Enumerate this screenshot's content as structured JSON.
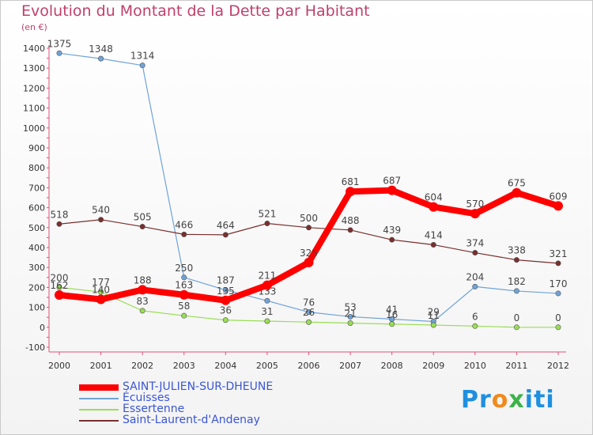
{
  "title": "Evolution du Montant de la Dette par Habitant",
  "subtitle": "(en €)",
  "logo": {
    "p1": "Pr",
    "p2": "o",
    "p3": "x",
    "p4": "iti"
  },
  "chart_data": {
    "type": "line",
    "title": "Evolution du Montant de la Dette par Habitant",
    "subtitle": "(en €)",
    "x": [
      "2000",
      "2001",
      "2002",
      "2003",
      "2004",
      "2005",
      "2006",
      "2007",
      "2008",
      "2009",
      "2010",
      "2011",
      "2012"
    ],
    "ylim": [
      -100,
      1400
    ],
    "yticks": [
      -100,
      0,
      100,
      200,
      300,
      400,
      500,
      600,
      700,
      800,
      900,
      1000,
      1100,
      1200,
      1300,
      1400
    ],
    "grid": false,
    "legend_position": "bottom-left",
    "series": [
      {
        "name": "SAINT-JULIEN-SUR-DHEUNE",
        "color": "#ff0000",
        "width": 8,
        "values": [
          162,
          140,
          188,
          163,
          135,
          211,
          325,
          681,
          687,
          604,
          570,
          675,
          609
        ],
        "labels": [
          "162",
          "140",
          "188",
          "163",
          "135",
          "211",
          "325",
          "681",
          "687",
          "604",
          "570",
          "675",
          "609"
        ]
      },
      {
        "name": "Écuisses",
        "color": "#6fa3d8",
        "width": 1.2,
        "values": [
          1375,
          1348,
          1314,
          250,
          187,
          133,
          76,
          53,
          41,
          29,
          204,
          182,
          170
        ],
        "labels": [
          "1375",
          "1348",
          "1314",
          "250",
          "187",
          "133",
          "76",
          "53",
          "41",
          "29",
          "204",
          "182",
          "170"
        ]
      },
      {
        "name": "Essertenne",
        "color": "#99dd55",
        "width": 1.2,
        "values": [
          200,
          177,
          83,
          58,
          36,
          31,
          26,
          21,
          16,
          11,
          6,
          0,
          0
        ],
        "labels": [
          "200",
          "177",
          "83",
          "58",
          "36",
          "31",
          "26",
          "21",
          "16",
          "11",
          "6",
          "0",
          "0"
        ]
      },
      {
        "name": "Saint-Laurent-d'Andenay",
        "color": "#7a2e2e",
        "width": 1.2,
        "values": [
          518,
          540,
          505,
          466,
          464,
          521,
          500,
          488,
          439,
          414,
          374,
          338,
          321
        ],
        "labels": [
          "518",
          "540",
          "505",
          "466",
          "464",
          "521",
          "500",
          "488",
          "439",
          "414",
          "374",
          "338",
          "321"
        ]
      }
    ]
  }
}
